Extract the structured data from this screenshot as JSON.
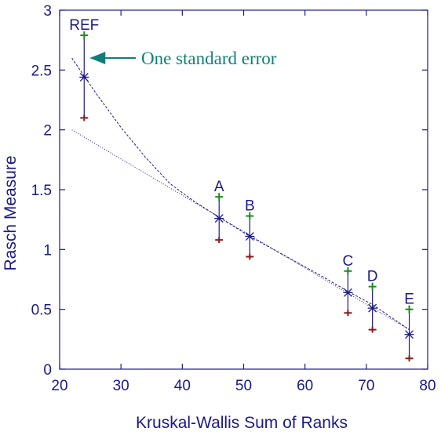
{
  "chart_data": {
    "type": "scatter",
    "title": "",
    "xlabel": "Kruskal-Wallis Sum of Ranks",
    "ylabel": "Rasch Measure",
    "xlim": [
      20,
      80
    ],
    "ylim": [
      0,
      3
    ],
    "x_ticks": [
      "20",
      "30",
      "40",
      "50",
      "60",
      "70",
      "80"
    ],
    "y_ticks": [
      "0",
      "0.5",
      "1",
      "1.5",
      "2",
      "2.5",
      "3"
    ],
    "grid": false,
    "points": [
      {
        "label": "REF",
        "x": 24,
        "y": 2.44,
        "upper": 2.79,
        "lower": 2.1
      },
      {
        "label": "A",
        "x": 46,
        "y": 1.26,
        "upper": 1.44,
        "lower": 1.08
      },
      {
        "label": "B",
        "x": 51,
        "y": 1.11,
        "upper": 1.28,
        "lower": 0.94
      },
      {
        "label": "C",
        "x": 67,
        "y": 0.64,
        "upper": 0.82,
        "lower": 0.47
      },
      {
        "label": "D",
        "x": 71,
        "y": 0.51,
        "upper": 0.69,
        "lower": 0.33
      },
      {
        "label": "E",
        "x": 77,
        "y": 0.29,
        "upper": 0.5,
        "lower": 0.09
      }
    ],
    "curve_fit": {
      "x": [
        22,
        26,
        30,
        34,
        38,
        42,
        46,
        51,
        57,
        63,
        67,
        71,
        77
      ],
      "y": [
        2.6,
        2.3,
        2.02,
        1.77,
        1.55,
        1.4,
        1.27,
        1.11,
        0.94,
        0.77,
        0.65,
        0.54,
        0.33
      ]
    },
    "linear_fit": {
      "x": [
        22,
        77
      ],
      "y": [
        2.0,
        0.33
      ]
    },
    "annotation": {
      "text": "One standard error",
      "points_to": "REF upper"
    },
    "colors": {
      "axis": "#1a1a8c",
      "point": "#1a1a8c",
      "upper_marker": "#1f8a1f",
      "lower_marker": "#8b1a1a",
      "annotation": "#0e7f7a",
      "fit_line": "#1a1a8c"
    }
  }
}
